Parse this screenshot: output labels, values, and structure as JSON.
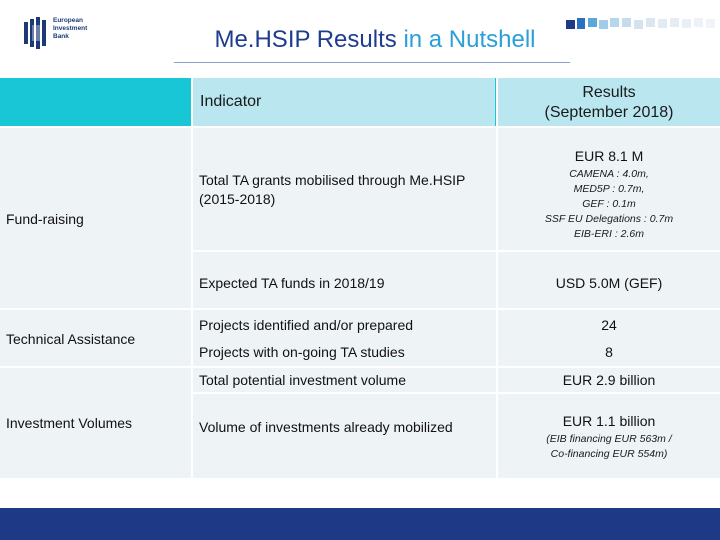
{
  "logo": {
    "lines": [
      "European",
      "Investment",
      "Bank"
    ],
    "icon": "eib-logo-mark",
    "color": "#1d3a78"
  },
  "title": {
    "part1": "Me.HSIP Results",
    "part2": "in a Nutshell",
    "color_main": "#1e3d8f",
    "color_accent": "#2a9fd8"
  },
  "table": {
    "header": {
      "indicator": "Indicator",
      "results_line1": "Results",
      "results_line2": "(September 2018)"
    },
    "groups": {
      "fundraising": "Fund-raising",
      "technical": "Technical Assistance",
      "investment": "Investment Volumes"
    },
    "rows": [
      {
        "indicator": "Total TA grants mobilised through Me.HSIP (2015-2018)",
        "result": "EUR 8.1 M",
        "details": [
          "CAMENA : 4.0m,",
          "MED5P : 0.7m,",
          "GEF : 0.1m",
          "SSF EU Delegations : 0.7m",
          "EIB-ERI : 2.6m"
        ]
      },
      {
        "indicator": "Expected TA funds in 2018/19",
        "result": "USD 5.0M (GEF)"
      },
      {
        "indicator": "Projects identified and/or prepared",
        "result": "24"
      },
      {
        "indicator": "Projects with on-going TA studies",
        "result": "8"
      },
      {
        "indicator": "Total potential investment volume",
        "result": "EUR 2.9 billion"
      },
      {
        "indicator": "Volume of investments already mobilized",
        "result": "EUR 1.1 billion",
        "details": [
          "(EIB financing EUR 563m /",
          "Co-financing EUR 554m)"
        ]
      }
    ]
  },
  "colors": {
    "header_band": "#19c6d6",
    "header_cell": "#b9e6ef",
    "row_fill": "#eef3f6",
    "footer": "#1e3a86"
  }
}
